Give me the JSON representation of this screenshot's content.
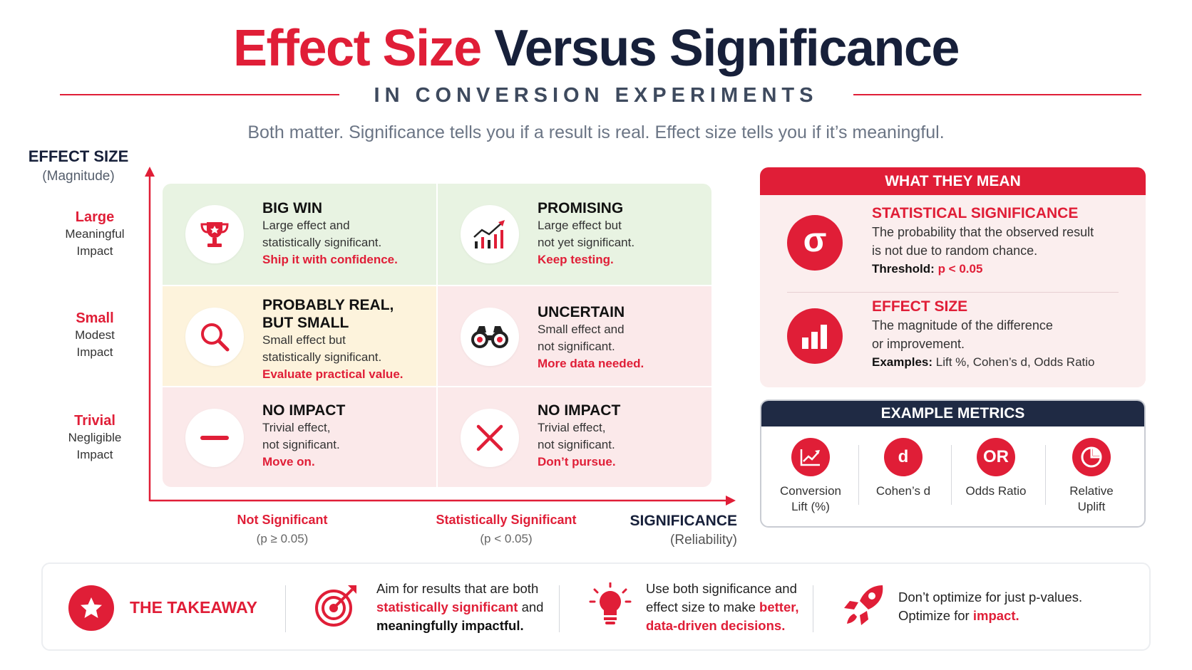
{
  "title": {
    "part1": "Effect Size",
    "part2": "Versus Significance"
  },
  "subtitle": "IN CONVERSION EXPERIMENTS",
  "tagline": "Both matter. Significance tells you if a result is real. Effect size tells you if it’s meaningful.",
  "y_axis": {
    "label": "EFFECT SIZE",
    "sub": "(Magnitude)"
  },
  "rows": [
    {
      "label": "Large",
      "desc_line1": "Meaningful",
      "desc_line2": "Impact"
    },
    {
      "label": "Small",
      "desc_line1": "Modest",
      "desc_line2": "Impact"
    },
    {
      "label": "Trivial",
      "desc_line1": "Negligible",
      "desc_line2": "Impact"
    }
  ],
  "quadrants": [
    {
      "icon": "trophy-icon",
      "title": "BIG WIN",
      "d1": "Large effect and",
      "d2": "statistically significant.",
      "cta": "Ship it with confidence."
    },
    {
      "icon": "trend-chart-icon",
      "title": "PROMISING",
      "d1": "Large effect but",
      "d2": "not yet significant.",
      "cta": "Keep testing."
    },
    {
      "icon": "magnifier-icon",
      "title_line1": "PROBABLY REAL,",
      "title_line2": "BUT SMALL",
      "d1": "Small effect but",
      "d2": "statistically significant.",
      "cta": "Evaluate practical value."
    },
    {
      "icon": "binoculars-icon",
      "title": "UNCERTAIN",
      "d1": "Small effect and",
      "d2": "not significant.",
      "cta": "More data needed."
    },
    {
      "icon": "minus-icon",
      "title": "NO IMPACT",
      "d1": "Trivial effect,",
      "d2": "not significant.",
      "cta": "Move on."
    },
    {
      "icon": "x-icon",
      "title": "NO IMPACT",
      "d1": "Trivial effect,",
      "d2": "not significant.",
      "cta": "Don’t pursue."
    }
  ],
  "x_axis": {
    "left_label": "Not Significant",
    "left_sub": "(p ≥ 0.05)",
    "right_label": "Statistically Significant",
    "right_sub": "(p < 0.05)",
    "label": "SIGNIFICANCE",
    "sub": "(Reliability)"
  },
  "meaning": {
    "header": "WHAT THEY MEAN",
    "sig": {
      "icon": "sigma-icon",
      "symbol": "σ",
      "title": "STATISTICAL SIGNIFICANCE",
      "d1": "The probability that the observed result",
      "d2": "is not due to random chance.",
      "label": "Threshold:",
      "value": "p < 0.05"
    },
    "effect": {
      "icon": "bar-chart-icon",
      "title": "EFFECT SIZE",
      "d1": "The magnitude of the difference",
      "d2": "or improvement.",
      "label": "Examples:",
      "value": "Lift %, Cohen’s d, Odds Ratio"
    }
  },
  "metrics": {
    "header": "EXAMPLE METRICS",
    "items": [
      {
        "icon": "line-chart-icon",
        "l1": "Conversion",
        "l2": "Lift (%)"
      },
      {
        "icon": "letter-d-icon",
        "glyph": "d",
        "l1": "Cohen’s d",
        "l2": ""
      },
      {
        "icon": "letters-or-icon",
        "glyph": "OR",
        "l1": "Odds Ratio",
        "l2": ""
      },
      {
        "icon": "pie-chart-icon",
        "l1": "Relative",
        "l2": "Uplift"
      }
    ]
  },
  "takeaway": {
    "label": "THE TAKEAWAY",
    "items": [
      {
        "icon": "target-icon",
        "l1": "Aim for results that are both",
        "l2_red": "statistically significant",
        "l2_rest": " and",
        "l3": "meaningfully impactful."
      },
      {
        "icon": "lightbulb-icon",
        "l1": "Use both significance and",
        "l2a": "effect size to make ",
        "l2_red": "better,",
        "l3_red": "data-driven decisions."
      },
      {
        "icon": "rocket-icon",
        "l1": "Don’t optimize for just p-values.",
        "l2a": "Optimize for ",
        "l2_red": "impact."
      }
    ]
  },
  "colors": {
    "accent": "#e01e37",
    "navy": "#17203a",
    "green": "#e8f3e2",
    "yellow": "#fdf3dc",
    "pink": "#fbe9ea"
  }
}
